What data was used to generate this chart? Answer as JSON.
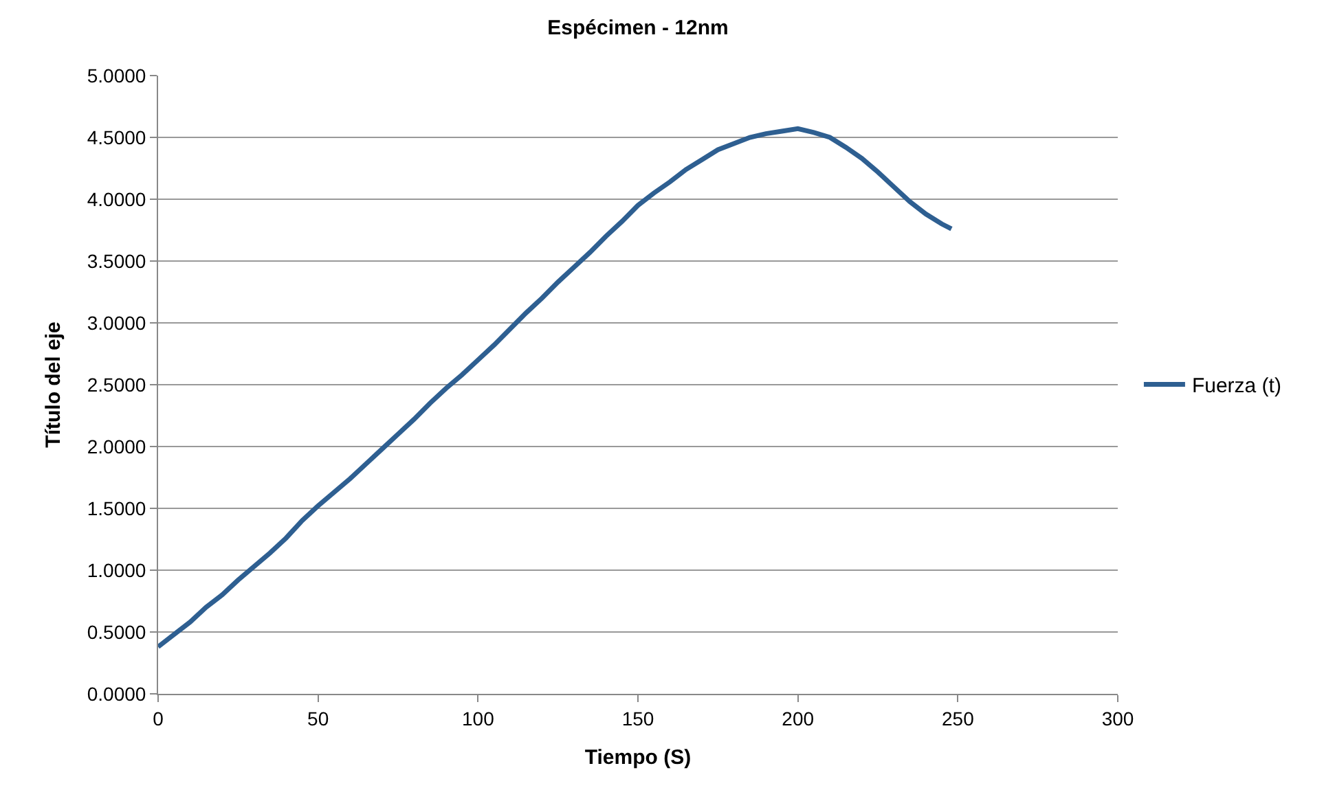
{
  "chart_data": {
    "type": "line",
    "title": "Espécimen - 12nm",
    "xlabel": "Tiempo (S)",
    "ylabel": "Título del eje",
    "x": [
      0,
      5,
      10,
      15,
      20,
      25,
      30,
      35,
      40,
      45,
      50,
      55,
      60,
      65,
      70,
      75,
      80,
      85,
      90,
      95,
      100,
      105,
      110,
      115,
      120,
      125,
      130,
      135,
      140,
      145,
      150,
      155,
      160,
      165,
      170,
      175,
      180,
      185,
      190,
      195,
      200,
      205,
      210,
      215,
      220,
      225,
      230,
      235,
      240,
      245,
      248
    ],
    "series": [
      {
        "name": "Fuerza (t)",
        "color": "#2e5f91",
        "values": [
          0.38,
          0.48,
          0.58,
          0.7,
          0.8,
          0.92,
          1.03,
          1.14,
          1.26,
          1.4,
          1.52,
          1.63,
          1.74,
          1.86,
          1.98,
          2.1,
          2.22,
          2.35,
          2.47,
          2.58,
          2.7,
          2.82,
          2.95,
          3.08,
          3.2,
          3.33,
          3.45,
          3.57,
          3.7,
          3.82,
          3.95,
          4.05,
          4.14,
          4.24,
          4.32,
          4.4,
          4.45,
          4.5,
          4.53,
          4.55,
          4.57,
          4.54,
          4.5,
          4.42,
          4.33,
          4.22,
          4.1,
          3.98,
          3.88,
          3.8,
          3.76
        ]
      }
    ],
    "xlim": [
      0,
      300
    ],
    "xticks": [
      0,
      50,
      100,
      150,
      200,
      250,
      300
    ],
    "ylim": [
      0,
      5
    ],
    "yticks": [
      {
        "value": 0,
        "label": "0.0000"
      },
      {
        "value": 0.5,
        "label": "0.5000"
      },
      {
        "value": 1,
        "label": "1.0000"
      },
      {
        "value": 1.5,
        "label": "1.5000"
      },
      {
        "value": 2,
        "label": "2.0000"
      },
      {
        "value": 2.5,
        "label": "2.5000"
      },
      {
        "value": 3,
        "label": "3.0000"
      },
      {
        "value": 3.5,
        "label": "3.5000"
      },
      {
        "value": 4,
        "label": "4.0000"
      },
      {
        "value": 4.5,
        "label": "4.5000"
      },
      {
        "value": 5,
        "label": "5.0000"
      }
    ],
    "grid": "y",
    "legend": "right",
    "marker": "none",
    "line_style": "solid"
  }
}
